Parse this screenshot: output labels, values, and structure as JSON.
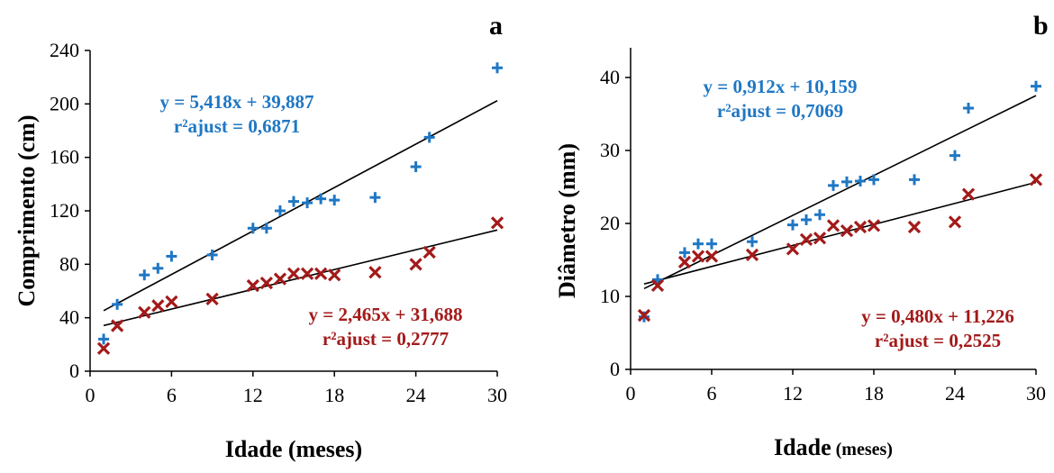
{
  "chart_data": [
    {
      "type": "scatter",
      "panel_label": "a",
      "xlabel": "Idade (meses)",
      "ylabel": "Comprimento (cm)",
      "xlim": [
        0,
        30
      ],
      "ylim": [
        0,
        240
      ],
      "xticks": [
        "0",
        "6",
        "12",
        "18",
        "24",
        "30"
      ],
      "yticks": [
        "0",
        "40",
        "80",
        "120",
        "160",
        "200",
        "240"
      ],
      "grid": false,
      "series": [
        {
          "marker": "plus",
          "color": "#1f77c4",
          "x": [
            1,
            2,
            4,
            5,
            6,
            9,
            12,
            13,
            14,
            15,
            16,
            17,
            18,
            21,
            24,
            25,
            30
          ],
          "y": [
            24,
            50,
            72,
            77,
            86,
            87,
            107,
            107,
            120,
            127,
            126,
            129,
            128,
            130,
            153,
            175,
            227
          ],
          "trend": {
            "slope": 5.418,
            "intercept": 39.887,
            "x_from": 1,
            "x_to": 30
          },
          "equation": "y = 5,418x + 39,887",
          "r2": "r²ajust = 0,6871"
        },
        {
          "marker": "cross",
          "color": "#a31a1a",
          "x": [
            1,
            2,
            4,
            5,
            6,
            9,
            12,
            13,
            14,
            15,
            16,
            17,
            18,
            21,
            24,
            25,
            30
          ],
          "y": [
            17,
            34,
            44,
            49,
            52,
            54,
            64,
            66,
            69,
            73,
            73,
            73,
            72,
            74,
            80,
            89,
            111
          ],
          "trend": {
            "slope": 2.465,
            "intercept": 31.688,
            "x_from": 1,
            "x_to": 30
          },
          "equation": "y = 2,465x + 31,688",
          "r2": "r²ajust = 0,2777"
        }
      ]
    },
    {
      "type": "scatter",
      "panel_label": "b",
      "xlabel": "Idade",
      "xlabel_unit": "(meses)",
      "ylabel": "Diâmetro (mm)",
      "xlim": [
        0,
        30
      ],
      "ylim": [
        0,
        40
      ],
      "xticks": [
        "0",
        "6",
        "12",
        "18",
        "24",
        "30"
      ],
      "yticks": [
        "0",
        "10",
        "20",
        "30",
        "40"
      ],
      "grid": false,
      "series": [
        {
          "marker": "plus",
          "color": "#1f77c4",
          "x": [
            1,
            2,
            4,
            5,
            6,
            9,
            12,
            13,
            14,
            15,
            16,
            17,
            18,
            21,
            24,
            25,
            30
          ],
          "y": [
            7.2,
            12.3,
            16,
            17.2,
            17.2,
            17.5,
            19.8,
            20.5,
            21.2,
            25.2,
            25.7,
            25.8,
            26,
            26,
            29.3,
            35.8,
            38.8
          ],
          "trend": {
            "slope": 0.912,
            "intercept": 10.159,
            "x_from": 1,
            "x_to": 30
          },
          "equation": "y = 0,912x + 10,159",
          "r2": "r²ajust = 0,7069"
        },
        {
          "marker": "cross",
          "color": "#a31a1a",
          "x": [
            1,
            2,
            4,
            5,
            6,
            9,
            12,
            13,
            14,
            15,
            16,
            17,
            18,
            21,
            24,
            25,
            30
          ],
          "y": [
            7.4,
            11.5,
            14.7,
            15.5,
            15.5,
            15.7,
            16.5,
            17.8,
            18,
            19.7,
            19,
            19.5,
            19.7,
            19.5,
            20.2,
            24,
            26
          ],
          "trend": {
            "slope": 0.48,
            "intercept": 11.226,
            "x_from": 1,
            "x_to": 30
          },
          "equation": "y = 0,480x + 11,226",
          "r2": "r²ajust = 0,2525"
        }
      ]
    }
  ]
}
